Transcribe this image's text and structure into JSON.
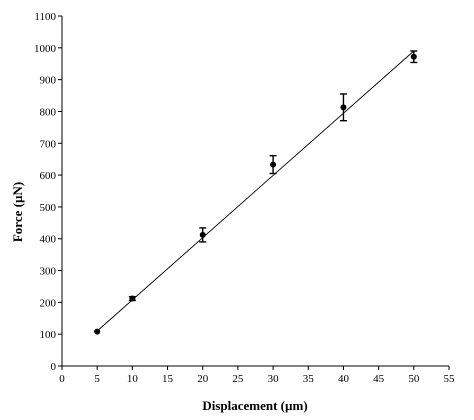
{
  "chart_data": {
    "type": "scatter",
    "xlabel": "Displacement (µm)",
    "ylabel": "Force (µN)",
    "xlim": [
      0,
      55
    ],
    "ylim": [
      0,
      1100
    ],
    "xticks": [
      0,
      5,
      10,
      15,
      20,
      25,
      30,
      35,
      40,
      45,
      50,
      55
    ],
    "yticks": [
      0,
      100,
      200,
      300,
      400,
      500,
      600,
      700,
      800,
      900,
      1000,
      1100
    ],
    "grid": false,
    "points": [
      {
        "x": 5,
        "y": 108,
        "err": 0
      },
      {
        "x": 10,
        "y": 212,
        "err": 6
      },
      {
        "x": 20,
        "y": 412,
        "err": 22
      },
      {
        "x": 30,
        "y": 633,
        "err": 28
      },
      {
        "x": 40,
        "y": 813,
        "err": 42
      },
      {
        "x": 50,
        "y": 972,
        "err": 18
      }
    ],
    "fit_line": {
      "x": [
        5,
        50
      ],
      "y": [
        110,
        990
      ]
    }
  }
}
